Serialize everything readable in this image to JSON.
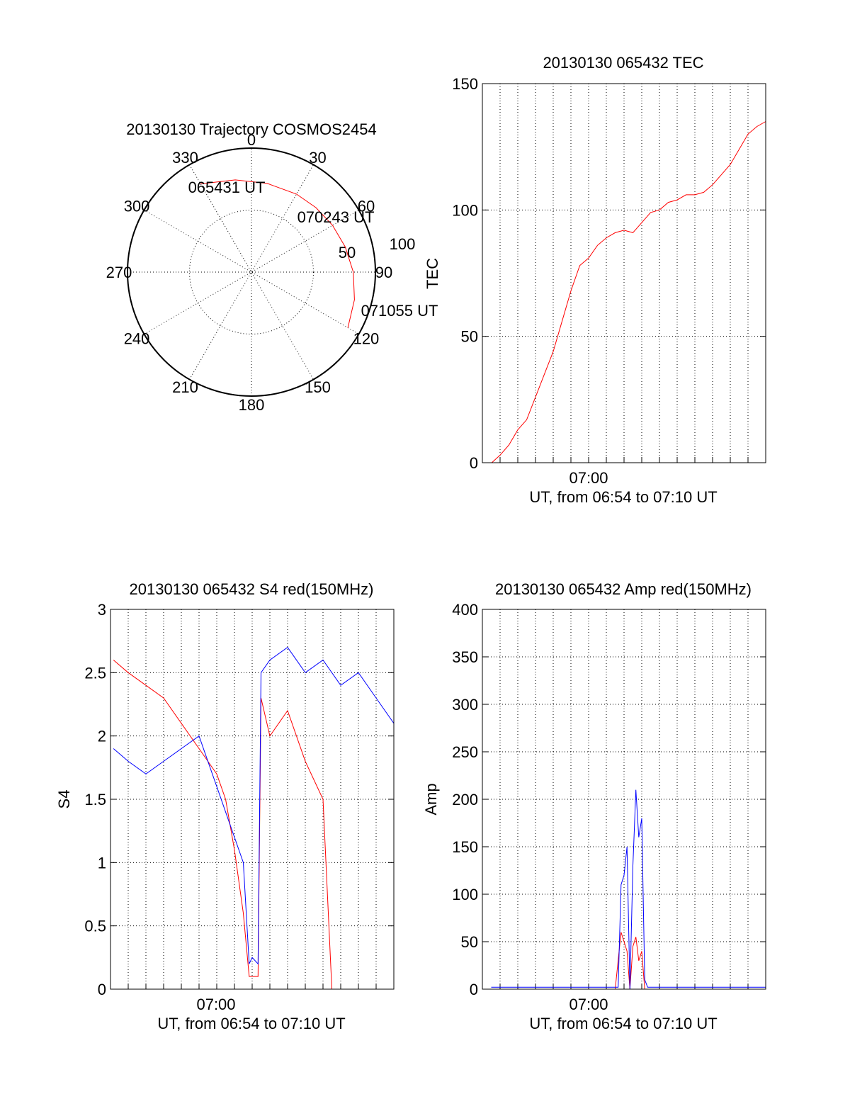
{
  "colors": {
    "red": "#ff0000",
    "blue": "#0000ff",
    "axis": "#000000"
  },
  "chart_data": [
    {
      "id": "trajectory",
      "type": "polar",
      "title": "20130130 Trajectory COSMOS2454",
      "angle_labels": [
        "0",
        "30",
        "60",
        "90",
        "120",
        "150",
        "180",
        "210",
        "240",
        "270",
        "300",
        "330"
      ],
      "radius_labels": [
        "50",
        "100"
      ],
      "rlabel": "TEC",
      "annotations": [
        "065431 UT",
        "070243 UT",
        "071055 UT"
      ],
      "series": [
        {
          "color": "red",
          "azimuth_deg": [
            330,
            350,
            10,
            30,
            45,
            60,
            75,
            90,
            105,
            120
          ],
          "zenith_deg": [
            86,
            79,
            76,
            76,
            77,
            79,
            82,
            86,
            90,
            94
          ]
        }
      ]
    },
    {
      "id": "tec",
      "type": "line",
      "title": "20130130 065432 TEC",
      "xlabel": "UT, from 06:54 to 07:10 UT",
      "ylabel": "TEC",
      "x_tick_labels": [
        "07:00"
      ],
      "xlim": [
        "06:54:00",
        "07:10:00"
      ],
      "ylim": [
        0,
        150
      ],
      "y_ticks": [
        0,
        50,
        100,
        150
      ],
      "grid": true,
      "series": [
        {
          "color": "red",
          "x": [
            "06:54:32",
            "06:55:00",
            "06:55:30",
            "06:56:00",
            "06:56:30",
            "06:57:00",
            "06:57:30",
            "06:58:00",
            "06:58:30",
            "06:59:00",
            "06:59:30",
            "07:00:00",
            "07:00:30",
            "07:01:00",
            "07:01:30",
            "07:02:00",
            "07:02:30",
            "07:03:00",
            "07:03:30",
            "07:04:00",
            "07:04:30",
            "07:05:00",
            "07:05:30",
            "07:06:00",
            "07:06:30",
            "07:07:00",
            "07:07:30",
            "07:08:00",
            "07:08:30",
            "07:09:00",
            "07:09:30",
            "07:10:00"
          ],
          "y": [
            0,
            3,
            7,
            13,
            17,
            26,
            35,
            44,
            56,
            68,
            78,
            81,
            86,
            89,
            91,
            92,
            91,
            95,
            99,
            100,
            103,
            104,
            106,
            106,
            107,
            110,
            114,
            118,
            124,
            130,
            133,
            135
          ]
        }
      ]
    },
    {
      "id": "s4",
      "type": "line",
      "title": "20130130 065432 S4 red(150MHz)",
      "xlabel": "UT, from 06:54 to 07:10 UT",
      "ylabel": "S4",
      "x_tick_labels": [
        "07:00"
      ],
      "xlim": [
        "06:54:00",
        "07:10:00"
      ],
      "ylim": [
        0,
        3
      ],
      "y_tick_labels": [
        "0",
        "0.5",
        "1",
        "1.5",
        "2",
        "2.5",
        "3"
      ],
      "grid": true,
      "series": [
        {
          "color": "red",
          "x": [
            "06:54:10",
            "06:55:00",
            "06:56:00",
            "06:57:00",
            "06:58:00",
            "06:59:00",
            "06:59:30",
            "07:00:00",
            "07:00:30",
            "07:01:00",
            "07:01:30",
            "07:01:50",
            "07:02:00",
            "07:02:20",
            "07:02:30",
            "07:03:00",
            "07:04:00",
            "07:05:00",
            "07:06:00",
            "07:06:30"
          ],
          "y": [
            2.6,
            2.5,
            2.4,
            2.3,
            2.1,
            1.9,
            1.8,
            1.7,
            1.5,
            1.1,
            0.6,
            0.1,
            0.1,
            0.1,
            2.3,
            2.0,
            2.2,
            1.8,
            1.5,
            0.0
          ]
        },
        {
          "color": "blue",
          "x": [
            "06:54:10",
            "06:55:00",
            "06:56:00",
            "06:57:00",
            "06:58:00",
            "06:59:00",
            "06:59:30",
            "07:00:00",
            "07:00:30",
            "07:01:00",
            "07:01:30",
            "07:01:50",
            "07:02:00",
            "07:02:20",
            "07:02:30",
            "07:03:00",
            "07:04:00",
            "07:05:00",
            "07:06:00",
            "07:07:00",
            "07:08:00",
            "07:09:00",
            "07:10:00"
          ],
          "y": [
            1.9,
            1.8,
            1.7,
            1.8,
            1.9,
            2.0,
            1.8,
            1.6,
            1.4,
            1.2,
            1.0,
            0.2,
            0.25,
            0.2,
            2.5,
            2.6,
            2.7,
            2.5,
            2.6,
            2.4,
            2.5,
            2.3,
            2.1
          ]
        }
      ]
    },
    {
      "id": "amp",
      "type": "line",
      "title": "20130130 065432 Amp red(150MHz)",
      "xlabel": "UT, from 06:54 to 07:10 UT",
      "ylabel": "Amp",
      "x_tick_labels": [
        "07:00"
      ],
      "xlim": [
        "06:54:00",
        "07:10:00"
      ],
      "ylim": [
        0,
        400
      ],
      "y_ticks": [
        0,
        50,
        100,
        150,
        200,
        250,
        300,
        350,
        400
      ],
      "grid": true,
      "series": [
        {
          "color": "red",
          "x": [
            "06:54:30",
            "07:01:30",
            "07:01:50",
            "07:02:00",
            "07:02:10",
            "07:02:20",
            "07:02:30",
            "07:02:40",
            "07:02:50",
            "07:03:00",
            "07:03:10",
            "07:10:00"
          ],
          "y": [
            0,
            0,
            60,
            50,
            40,
            0,
            45,
            55,
            30,
            40,
            0,
            0
          ]
        },
        {
          "color": "blue",
          "x": [
            "06:54:30",
            "07:01:40",
            "07:01:50",
            "07:02:00",
            "07:02:10",
            "07:02:20",
            "07:02:30",
            "07:02:40",
            "07:02:50",
            "07:03:00",
            "07:03:10",
            "07:03:20",
            "07:10:00"
          ],
          "y": [
            2,
            2,
            110,
            120,
            150,
            0,
            130,
            210,
            160,
            180,
            10,
            2,
            2
          ]
        }
      ]
    }
  ]
}
